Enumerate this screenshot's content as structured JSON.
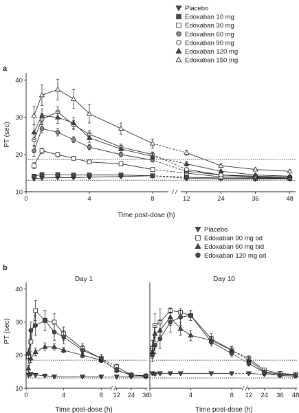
{
  "colors": {
    "ink": "#1a1a1a",
    "dark": "#4a4a4a",
    "mid": "#8c8c8c",
    "light": "#c4c4c4",
    "white": "#ffffff"
  },
  "legend_a": [
    {
      "label": "Placebo",
      "marker": "triangle-down",
      "fill": "#4a4a4a"
    },
    {
      "label": "Edoxaban 10 mg",
      "marker": "square",
      "fill": "#4a4a4a"
    },
    {
      "label": "Edoxaban 30 mg",
      "marker": "square",
      "fill": "#ffffff"
    },
    {
      "label": "Edoxaban 60 mg",
      "marker": "circle",
      "fill": "#8c8c8c"
    },
    {
      "label": "Edoxaban 90 mg",
      "marker": "circle",
      "fill": "#ffffff"
    },
    {
      "label": "Edoxaban 120 mg",
      "marker": "triangle-up",
      "fill": "#4a4a4a"
    },
    {
      "label": "Edoxaban 150 mg",
      "marker": "triangle-up",
      "fill": "#ffffff"
    }
  ],
  "legend_b": [
    {
      "label": "Placebo",
      "marker": "triangle-down",
      "fill": "#4a4a4a"
    },
    {
      "label": "Edoxaban 90 mg od",
      "marker": "square",
      "fill": "#ffffff"
    },
    {
      "label": "Edoxaban 60 mg bid",
      "marker": "triangle-up",
      "fill": "#4a4a4a"
    },
    {
      "label": "Edoxaban 120 mg od",
      "marker": "circle",
      "fill": "#4a4a4a"
    }
  ],
  "chart_data": [
    {
      "type": "line",
      "panel_label": "a",
      "ylabel": "PT (sec)",
      "xlabel": "Time post-dose (h)",
      "ylim": [
        10,
        42
      ],
      "yticks": [
        10,
        20,
        30,
        40
      ],
      "x_segments": [
        {
          "range": [
            0,
            9
          ],
          "ticks": [
            0,
            4,
            8
          ]
        },
        {
          "range": [
            10,
            50
          ],
          "ticks": [
            12,
            24,
            36,
            48
          ]
        }
      ],
      "reference_lines": [
        18.7,
        13.1
      ],
      "series": [
        {
          "name": "Placebo",
          "marker": "triangle-down",
          "fill": "#4a4a4a",
          "x": [
            0.5,
            1,
            2,
            3,
            4,
            6,
            8,
            12,
            24,
            36,
            48
          ],
          "y": [
            13.5,
            13.7,
            13.8,
            13.8,
            13.9,
            14.1,
            14.3,
            13.6,
            13.5,
            13.4,
            13.5
          ],
          "err": [
            0.4,
            0.3,
            0.3,
            0.3,
            0.3,
            0.3,
            0.3,
            0.3,
            0.3,
            0.3,
            0.3
          ]
        },
        {
          "name": "Edoxaban 10 mg",
          "marker": "square",
          "fill": "#4a4a4a",
          "x": [
            0.5,
            1,
            2,
            3,
            4,
            6,
            8,
            12,
            24,
            36,
            48
          ],
          "y": [
            14.2,
            14.6,
            14.6,
            14.5,
            14.5,
            14.5,
            14.3,
            13.9,
            13.7,
            13.6,
            13.6
          ],
          "err": [
            0.5,
            0.4,
            0.4,
            0.4,
            0.4,
            0.4,
            0.4,
            0.3,
            0.3,
            0.3,
            0.3
          ]
        },
        {
          "name": "Edoxaban 30 mg",
          "marker": "square",
          "fill": "#ffffff",
          "x": [
            0.5,
            1,
            2,
            3,
            4,
            6,
            8,
            12,
            24,
            36,
            48
          ],
          "y": [
            17,
            21,
            20,
            19,
            18,
            17.5,
            16,
            15,
            14,
            13.8,
            13.6
          ],
          "err": [
            0.8,
            0.7,
            0.6,
            0.5,
            0.5,
            0.5,
            0.4,
            0.4,
            0.3,
            0.3,
            0.3
          ]
        },
        {
          "name": "Edoxaban 60 mg",
          "marker": "circle",
          "fill": "#8c8c8c",
          "x": [
            0.5,
            1,
            2,
            3,
            4,
            6,
            8,
            12,
            24,
            36,
            48
          ],
          "y": [
            21,
            27,
            26,
            24,
            22,
            20,
            18.5,
            15.5,
            14.5,
            14,
            13.7
          ],
          "err": [
            1.5,
            1.2,
            1.0,
            0.8,
            0.7,
            0.6,
            0.5,
            0.5,
            0.4,
            0.3,
            0.3
          ]
        },
        {
          "name": "Edoxaban 90 mg",
          "marker": "circle",
          "fill": "#ffffff",
          "x": [
            0.5,
            1,
            2,
            3,
            4,
            6,
            8,
            12,
            24,
            36,
            48
          ],
          "y": [
            24,
            29.5,
            31.5,
            28,
            25.5,
            22,
            20,
            16,
            14.5,
            14.2,
            14
          ],
          "err": [
            1.8,
            1.5,
            1.4,
            1.2,
            1.0,
            0.8,
            0.7,
            0.5,
            0.4,
            0.3,
            0.3
          ]
        },
        {
          "name": "Edoxaban 120 mg",
          "marker": "triangle-up",
          "fill": "#4a4a4a",
          "x": [
            0.5,
            1,
            2,
            3,
            4,
            6,
            8,
            12,
            24,
            36,
            48
          ],
          "y": [
            26,
            30.5,
            30,
            28.5,
            24.5,
            21.5,
            19.5,
            17.5,
            15.5,
            14.5,
            14.2
          ],
          "err": [
            2.0,
            1.8,
            1.6,
            1.4,
            1.2,
            1.0,
            0.8,
            0.6,
            0.4,
            0.3,
            0.3
          ]
        },
        {
          "name": "Edoxaban 150 mg",
          "marker": "triangle-up",
          "fill": "#ffffff",
          "x": [
            0.5,
            1,
            2,
            3,
            4,
            6,
            8,
            12,
            24,
            36,
            48
          ],
          "y": [
            30.5,
            36,
            37.5,
            35,
            31,
            27,
            23,
            20.5,
            17,
            16,
            15.5
          ],
          "err": [
            2.5,
            2.8,
            2.8,
            2.5,
            2.5,
            1.5,
            1.2,
            0.7,
            0.5,
            0.4,
            0.4
          ]
        }
      ]
    },
    {
      "type": "line",
      "panel_label": "b",
      "ylabel": "PT (sec)",
      "xlabel": "Time post-dose (h)",
      "subtitle": "Day 1",
      "ylim": [
        10,
        42
      ],
      "yticks": [
        10,
        20,
        30,
        40
      ],
      "x_segments": [
        {
          "range": [
            0,
            9
          ],
          "ticks": [
            0,
            4,
            8
          ]
        },
        {
          "range": [
            11,
            37
          ],
          "ticks": [
            12,
            24,
            36
          ]
        }
      ],
      "reference_lines": [
        18.5,
        13.1
      ],
      "series": [
        {
          "name": "Placebo",
          "marker": "triangle-down",
          "fill": "#4a4a4a",
          "x": [
            0.25,
            0.5,
            1,
            2,
            3,
            6,
            8,
            12,
            24,
            36
          ],
          "y": [
            14,
            14.3,
            14,
            13.8,
            13.5,
            13.5,
            13.5,
            13.5,
            13.5,
            13.5
          ],
          "err": [
            0.5,
            0.4,
            0.4,
            0.3,
            0.3,
            0.3,
            0.3,
            0.3,
            0.3,
            0.3
          ]
        },
        {
          "name": "Edoxaban 90 mg od",
          "marker": "square",
          "fill": "#ffffff",
          "x": [
            0.25,
            0.5,
            1,
            2,
            3,
            4,
            6,
            8,
            12,
            24,
            36
          ],
          "y": [
            19.5,
            24,
            33.5,
            30.5,
            30,
            26.5,
            22,
            19,
            16.5,
            14,
            13.7
          ],
          "err": [
            2.0,
            3.0,
            3.0,
            3.0,
            2.5,
            2.0,
            1.5,
            1.2,
            0.8,
            0.5,
            0.5
          ]
        },
        {
          "name": "Edoxaban 60 mg bid",
          "marker": "triangle-up",
          "fill": "#4a4a4a",
          "x": [
            0.25,
            0.5,
            1,
            2,
            3,
            4,
            6,
            8,
            12,
            24,
            36
          ],
          "y": [
            16,
            19,
            21,
            22.5,
            22.5,
            21.5,
            20,
            18.5,
            15.5,
            14,
            13.7
          ],
          "err": [
            1.0,
            1.2,
            1.2,
            1.2,
            1.0,
            0.8,
            0.8,
            0.6,
            0.5,
            0.4,
            0.4
          ]
        },
        {
          "name": "Edoxaban 120 mg od",
          "marker": "circle",
          "fill": "#4a4a4a",
          "x": [
            0.25,
            0.5,
            1,
            2,
            3,
            4,
            6,
            8,
            12,
            24,
            36
          ],
          "y": [
            20.5,
            27.5,
            29,
            30.5,
            27,
            25.5,
            21.5,
            19,
            15.5,
            14,
            13.8
          ],
          "err": [
            1.5,
            2.5,
            3.0,
            3.0,
            2.5,
            2.0,
            1.5,
            1.2,
            0.8,
            0.5,
            0.5
          ]
        }
      ]
    },
    {
      "type": "line",
      "subtitle": "Day 10",
      "ylim": [
        10,
        42
      ],
      "x_segments": [
        {
          "range": [
            0,
            9
          ],
          "ticks": [
            0,
            4,
            8
          ]
        },
        {
          "range": [
            11,
            49
          ],
          "ticks": [
            12,
            24,
            36,
            48
          ]
        }
      ],
      "reference_lines": [
        18.5,
        13.1
      ],
      "series": [
        {
          "name": "Placebo",
          "marker": "triangle-down",
          "fill": "#4a4a4a",
          "x": [
            0.25,
            0.5,
            1,
            2,
            3,
            6,
            8,
            12,
            24,
            36,
            48
          ],
          "y": [
            14.5,
            14.3,
            14.5,
            14.5,
            14.5,
            14.5,
            14.5,
            14.5,
            14.2,
            14,
            14
          ],
          "err": [
            0.5,
            0.4,
            0.4,
            0.4,
            0.4,
            0.4,
            0.4,
            0.4,
            0.4,
            0.3,
            0.3
          ]
        },
        {
          "name": "Edoxaban 90 mg od",
          "marker": "square",
          "fill": "#ffffff",
          "x": [
            0.25,
            0.5,
            1,
            2,
            3,
            4,
            6,
            8,
            12,
            24,
            36,
            48
          ],
          "y": [
            22,
            29,
            30,
            33.5,
            33,
            32,
            25,
            21.5,
            19,
            15.5,
            14.5,
            14.2
          ],
          "err": [
            2.5,
            3.5,
            4.0,
            0.8,
            1.0,
            1.5,
            1.5,
            1.2,
            0.8,
            0.5,
            0.4,
            0.4
          ]
        },
        {
          "name": "Edoxaban 60 mg bid",
          "marker": "triangle-up",
          "fill": "#4a4a4a",
          "x": [
            0.25,
            0.5,
            1,
            2,
            3,
            4,
            6,
            8,
            12,
            24,
            36,
            48
          ],
          "y": [
            21,
            26.5,
            27.5,
            31.5,
            28,
            26,
            24.5,
            21.5,
            18.5,
            15,
            14.2,
            14
          ],
          "err": [
            2.0,
            2.5,
            3.0,
            2.5,
            2.0,
            1.5,
            1.2,
            1.0,
            0.8,
            0.5,
            0.4,
            0.4
          ]
        },
        {
          "name": "Edoxaban 120 mg od",
          "marker": "circle",
          "fill": "#4a4a4a",
          "x": [
            0.25,
            0.5,
            1,
            2,
            3,
            4,
            6,
            8,
            12,
            24,
            36,
            48
          ],
          "y": [
            20,
            23,
            25,
            30,
            31.5,
            32,
            24,
            20.5,
            17.5,
            14.8,
            13.8,
            13.7
          ],
          "err": [
            2.0,
            2.5,
            3.0,
            3.0,
            2.5,
            1.5,
            1.2,
            1.0,
            0.8,
            0.5,
            0.4,
            0.4
          ]
        }
      ]
    }
  ]
}
